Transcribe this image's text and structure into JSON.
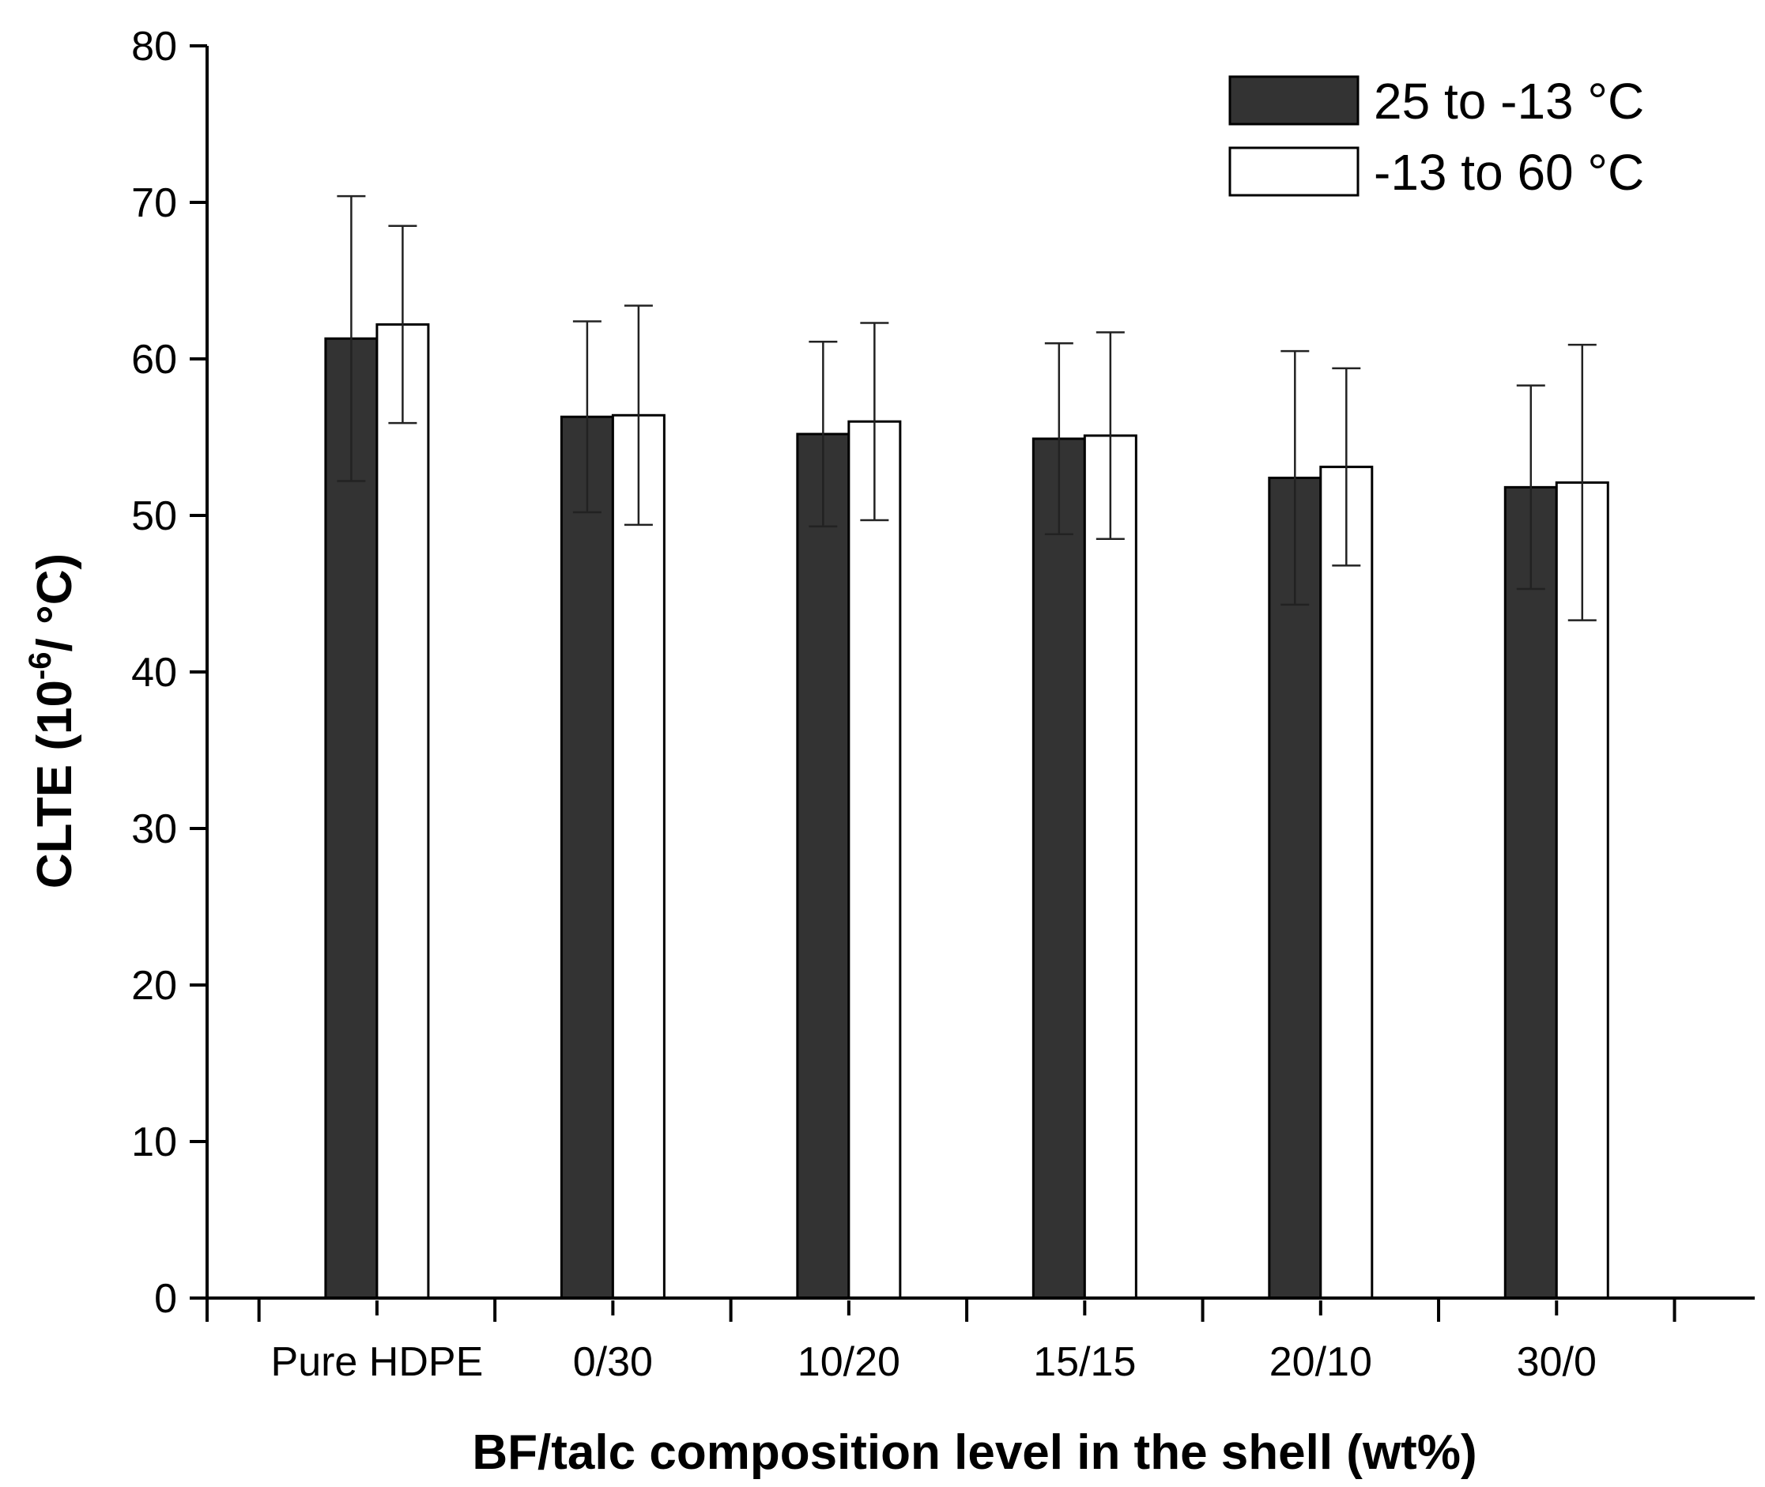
{
  "chart_data": {
    "type": "bar",
    "categories": [
      "Pure HDPE",
      "0/30",
      "10/20",
      "15/15",
      "20/10",
      "30/0"
    ],
    "series": [
      {
        "name": "25 to -13 °C",
        "color": "#333333",
        "values": [
          61.3,
          56.3,
          55.2,
          54.9,
          52.4,
          51.8
        ],
        "error": [
          9.1,
          6.1,
          5.9,
          6.1,
          8.1,
          6.5
        ]
      },
      {
        "name": "-13 to 60 °C",
        "color": "#ffffff",
        "values": [
          62.2,
          56.4,
          56.0,
          55.1,
          53.1,
          52.1
        ],
        "error": [
          6.3,
          7.0,
          6.3,
          6.6,
          6.3,
          8.8
        ]
      }
    ],
    "ylabel": {
      "prefix": "CLTE (10",
      "superscript": "-6",
      "suffix": "/ °C)"
    },
    "xlabel": "BF/talc composition level in the shell (wt%)",
    "ylim": [
      0,
      80
    ],
    "yticks": [
      0,
      10,
      20,
      30,
      40,
      50,
      60,
      70,
      80
    ],
    "legend_position": "top-right",
    "grid": false
  }
}
